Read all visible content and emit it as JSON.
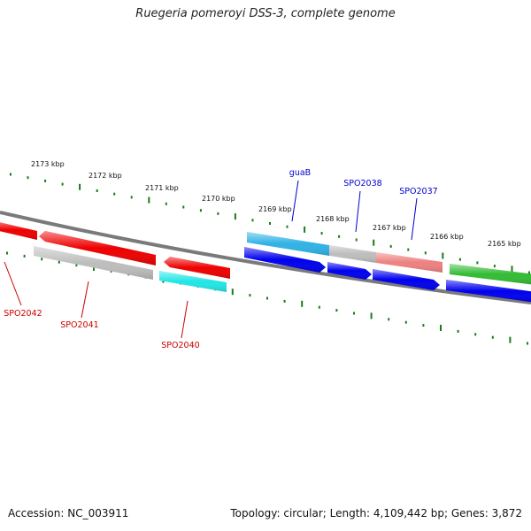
{
  "title": "Ruegeria pomeroyi DSS-3, complete genome",
  "footer": {
    "accession": "Accession: NC_003911",
    "stats": "Topology: circular; Length: 4,109,442 bp; Genes: 3,872"
  },
  "colors": {
    "backbone": "#7a7a7a",
    "tick": "#1b7a1b",
    "label_forward": "#0000cc",
    "label_reverse": "#cc0000"
  },
  "scale": {
    "unit": "kbp",
    "labels": [
      "2173 kbp",
      "2172 kbp",
      "2171 kbp",
      "2170 kbp",
      "2169 kbp",
      "2168 kbp",
      "2167 kbp",
      "2166 kbp",
      "2165 kbp"
    ]
  },
  "features": [
    {
      "strand": "reverse",
      "track": 1,
      "color": "#ee0000",
      "label": ""
    },
    {
      "strand": "reverse",
      "track": 1,
      "color": "#ee0000",
      "label": ""
    },
    {
      "strand": "reverse",
      "track": 1,
      "color": "#ee0000",
      "label": ""
    },
    {
      "strand": "reverse",
      "track": 2,
      "color": "#bdbdbd",
      "label": ""
    },
    {
      "strand": "reverse",
      "track": 2,
      "color": "#22e6e6",
      "label": ""
    },
    {
      "strand": "forward",
      "track": 1,
      "color": "#2fb2e6",
      "label": ""
    },
    {
      "strand": "forward",
      "track": 1,
      "color": "#bdbdbd",
      "label": ""
    },
    {
      "strand": "forward",
      "track": 1,
      "color": "#ee8080",
      "label": ""
    },
    {
      "strand": "forward",
      "track": 1,
      "color": "#33bb33",
      "label": ""
    },
    {
      "strand": "forward",
      "track": 2,
      "color": "#0000ee",
      "label": ""
    },
    {
      "strand": "forward",
      "track": 2,
      "color": "#0000ee",
      "label": ""
    },
    {
      "strand": "forward",
      "track": 2,
      "color": "#0000ee",
      "label": ""
    },
    {
      "strand": "forward",
      "track": 2,
      "color": "#0000ee",
      "label": ""
    }
  ],
  "gene_labels": [
    {
      "text": "guaB",
      "color": "#0000cc"
    },
    {
      "text": "SPO2038",
      "color": "#0000cc"
    },
    {
      "text": "SPO2037",
      "color": "#0000cc"
    },
    {
      "text": "SPO2042",
      "color": "#cc0000"
    },
    {
      "text": "SPO2041",
      "color": "#cc0000"
    },
    {
      "text": "SPO2040",
      "color": "#cc0000"
    }
  ]
}
